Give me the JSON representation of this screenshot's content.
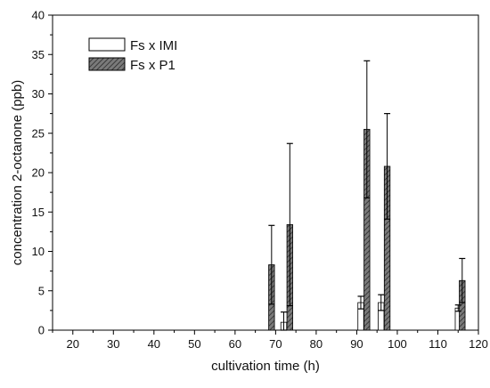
{
  "chart_data": {
    "type": "bar",
    "title": "",
    "xlabel": "cultivation time (h)",
    "ylabel": "concentration 2-octanone (ppb)",
    "xlim": [
      15,
      120
    ],
    "ylim": [
      0,
      40
    ],
    "xticks": [
      20,
      30,
      40,
      50,
      60,
      70,
      80,
      90,
      100,
      110,
      120
    ],
    "yticks": [
      0,
      5,
      10,
      15,
      20,
      25,
      30,
      35,
      40
    ],
    "grid": false,
    "legend_position": "top-left",
    "series": [
      {
        "name": "Fs x IMI",
        "pattern": "none",
        "fill": "#ffffff",
        "stroke": "#000000",
        "points": [
          {
            "x": 72,
            "y": 1.0,
            "err": 1.3
          },
          {
            "x": 91,
            "y": 3.5,
            "err": 0.8
          },
          {
            "x": 96,
            "y": 3.5,
            "err": 1.0
          },
          {
            "x": 115,
            "y": 2.8,
            "err": 0.4
          }
        ]
      },
      {
        "name": "Fs x P1",
        "pattern": "diagonal-hatch",
        "fill": "#6e6e6e",
        "stroke": "#000000",
        "points": [
          {
            "x": 69,
            "y": 8.3,
            "err": 5.0
          },
          {
            "x": 73.5,
            "y": 13.4,
            "err": 10.3
          },
          {
            "x": 92.5,
            "y": 25.5,
            "err": 8.7
          },
          {
            "x": 97.5,
            "y": 20.8,
            "err": 6.7
          },
          {
            "x": 116,
            "y": 6.3,
            "err": 2.8
          }
        ]
      }
    ]
  }
}
